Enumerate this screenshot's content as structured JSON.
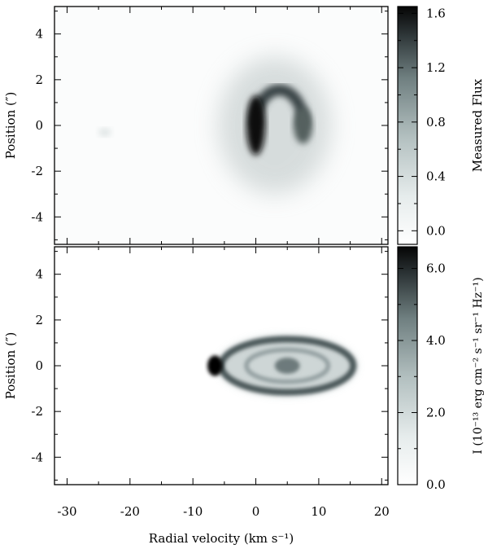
{
  "chart_data": [
    {
      "type": "heatmap",
      "panel": "top",
      "title": "",
      "xlabel": "",
      "ylabel": "Position (″)",
      "colorbar_label": "Measured Flux",
      "xlim": [
        -32,
        21
      ],
      "ylim": [
        -5.2,
        5.2
      ],
      "x_ticks": [
        -30,
        -20,
        -10,
        0,
        10,
        20
      ],
      "y_ticks": [
        -4,
        -2,
        0,
        2,
        4
      ],
      "y_tick_labels": [
        "-4",
        "-2",
        "0",
        "2",
        "4"
      ],
      "colorbar_range": [
        -0.1,
        1.65
      ],
      "colorbar_ticks": [
        0.0,
        0.4,
        0.8,
        1.2,
        1.6
      ],
      "colorbar_tick_labels": [
        "0.0",
        "0.4",
        "0.8",
        "1.2",
        "1.6"
      ],
      "colormap": {
        "low": "#ffffff",
        "high": "#050505"
      },
      "features": [
        {
          "kind": "arc",
          "cx": 3.5,
          "cy": 0.6,
          "rx_kms": 5.5,
          "ry_arcsec": 1.1,
          "value": 1.3
        },
        {
          "kind": "blob",
          "x_kms": 0.0,
          "y_arcsec": 0.0,
          "width_kms": 1.5,
          "height_arcsec": 1.3,
          "value": 1.65
        },
        {
          "kind": "blob",
          "x_kms": 7.5,
          "y_arcsec": 0.0,
          "width_kms": 1.5,
          "height_arcsec": 0.8,
          "value": 1.1
        },
        {
          "kind": "halo",
          "x_kms": 3.0,
          "y_arcsec": 0.0,
          "width_kms": 9.0,
          "height_arcsec": 3.0,
          "value": 0.2
        }
      ]
    },
    {
      "type": "heatmap",
      "panel": "bottom",
      "title": "",
      "xlabel": "Radial velocity (km s⁻¹)",
      "ylabel": "Position (″)",
      "colorbar_label": "I (10⁻¹³ erg cm⁻² s⁻¹ sr⁻¹ Hz⁻¹)",
      "xlim": [
        -32,
        21
      ],
      "ylim": [
        -5.2,
        5.2
      ],
      "x_ticks": [
        -30,
        -20,
        -10,
        0,
        10,
        20
      ],
      "x_tick_labels": [
        "-30",
        "-20",
        "-10",
        "0",
        "10",
        "20"
      ],
      "y_ticks": [
        -4,
        -2,
        0,
        2,
        4
      ],
      "y_tick_labels": [
        "-4",
        "-2",
        "0",
        "2",
        "4"
      ],
      "colorbar_range": [
        0.0,
        6.6
      ],
      "colorbar_ticks": [
        0.0,
        2.0,
        4.0,
        6.0
      ],
      "colorbar_tick_labels": [
        "0.0",
        "2.0",
        "4.0",
        "6.0"
      ],
      "colormap": {
        "low": "#ffffff",
        "high": "#050505"
      },
      "features": [
        {
          "kind": "ring",
          "cx": 5.0,
          "cy": 0.0,
          "rx_kms": 11.0,
          "ry_arcsec": 1.3,
          "value": 3.5
        },
        {
          "kind": "ring",
          "cx": 5.0,
          "cy": 0.0,
          "rx_kms": 6.5,
          "ry_arcsec": 0.7,
          "value": 2.0
        },
        {
          "kind": "blob",
          "x_kms": 5.0,
          "y_arcsec": 0.0,
          "width_kms": 2.0,
          "height_arcsec": 0.35,
          "value": 3.0
        },
        {
          "kind": "blob",
          "x_kms": -6.5,
          "y_arcsec": 0.0,
          "width_kms": 1.2,
          "height_arcsec": 0.45,
          "value": 6.5
        }
      ]
    }
  ]
}
